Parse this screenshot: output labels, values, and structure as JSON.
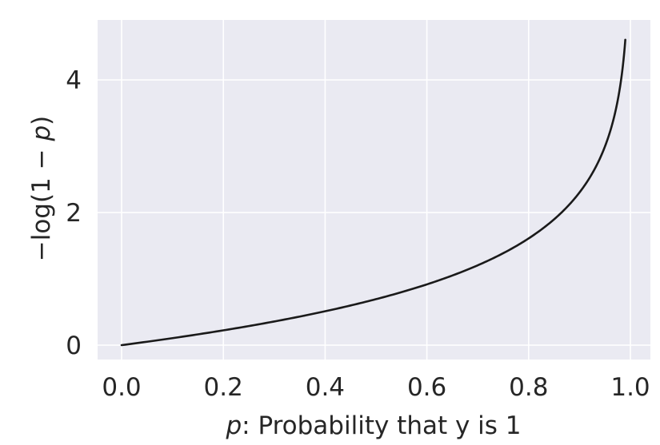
{
  "chart_data": {
    "type": "line",
    "title": "",
    "xlabel_italic": "p",
    "xlabel_rest": ": Probability that y is 1",
    "xlabel": "p: Probability that y is 1",
    "ylabel_prefix": "−log(1 − ",
    "ylabel_italic": "p",
    "ylabel_suffix": ")",
    "ylabel": "−log(1 − p)",
    "xlim": [
      -0.05,
      1.04
    ],
    "ylim": [
      -0.23,
      4.9
    ],
    "x_ticks": [
      0.0,
      0.2,
      0.4,
      0.6,
      0.8,
      1.0
    ],
    "x_tick_labels": [
      "0.0",
      "0.2",
      "0.4",
      "0.6",
      "0.8",
      "1.0"
    ],
    "y_ticks": [
      0,
      2,
      4
    ],
    "y_tick_labels": [
      "0",
      "2",
      "4"
    ],
    "grid": true,
    "style": "seaborn-darkgrid",
    "series": [
      {
        "name": "-log(1-p)",
        "color": "#1a1a1a",
        "x": [
          0.0,
          0.1,
          0.2,
          0.3,
          0.4,
          0.5,
          0.6,
          0.7,
          0.8,
          0.85,
          0.9,
          0.93,
          0.95,
          0.97,
          0.98,
          0.99
        ],
        "y": [
          0.0,
          0.105,
          0.223,
          0.357,
          0.511,
          0.693,
          0.916,
          1.204,
          1.609,
          1.897,
          2.303,
          2.659,
          2.996,
          3.507,
          3.912,
          4.605
        ]
      }
    ]
  },
  "colors": {
    "plot_bg": "#eaeaf2",
    "grid": "#ffffff",
    "line": "#1a1a1a",
    "text": "#262626"
  }
}
